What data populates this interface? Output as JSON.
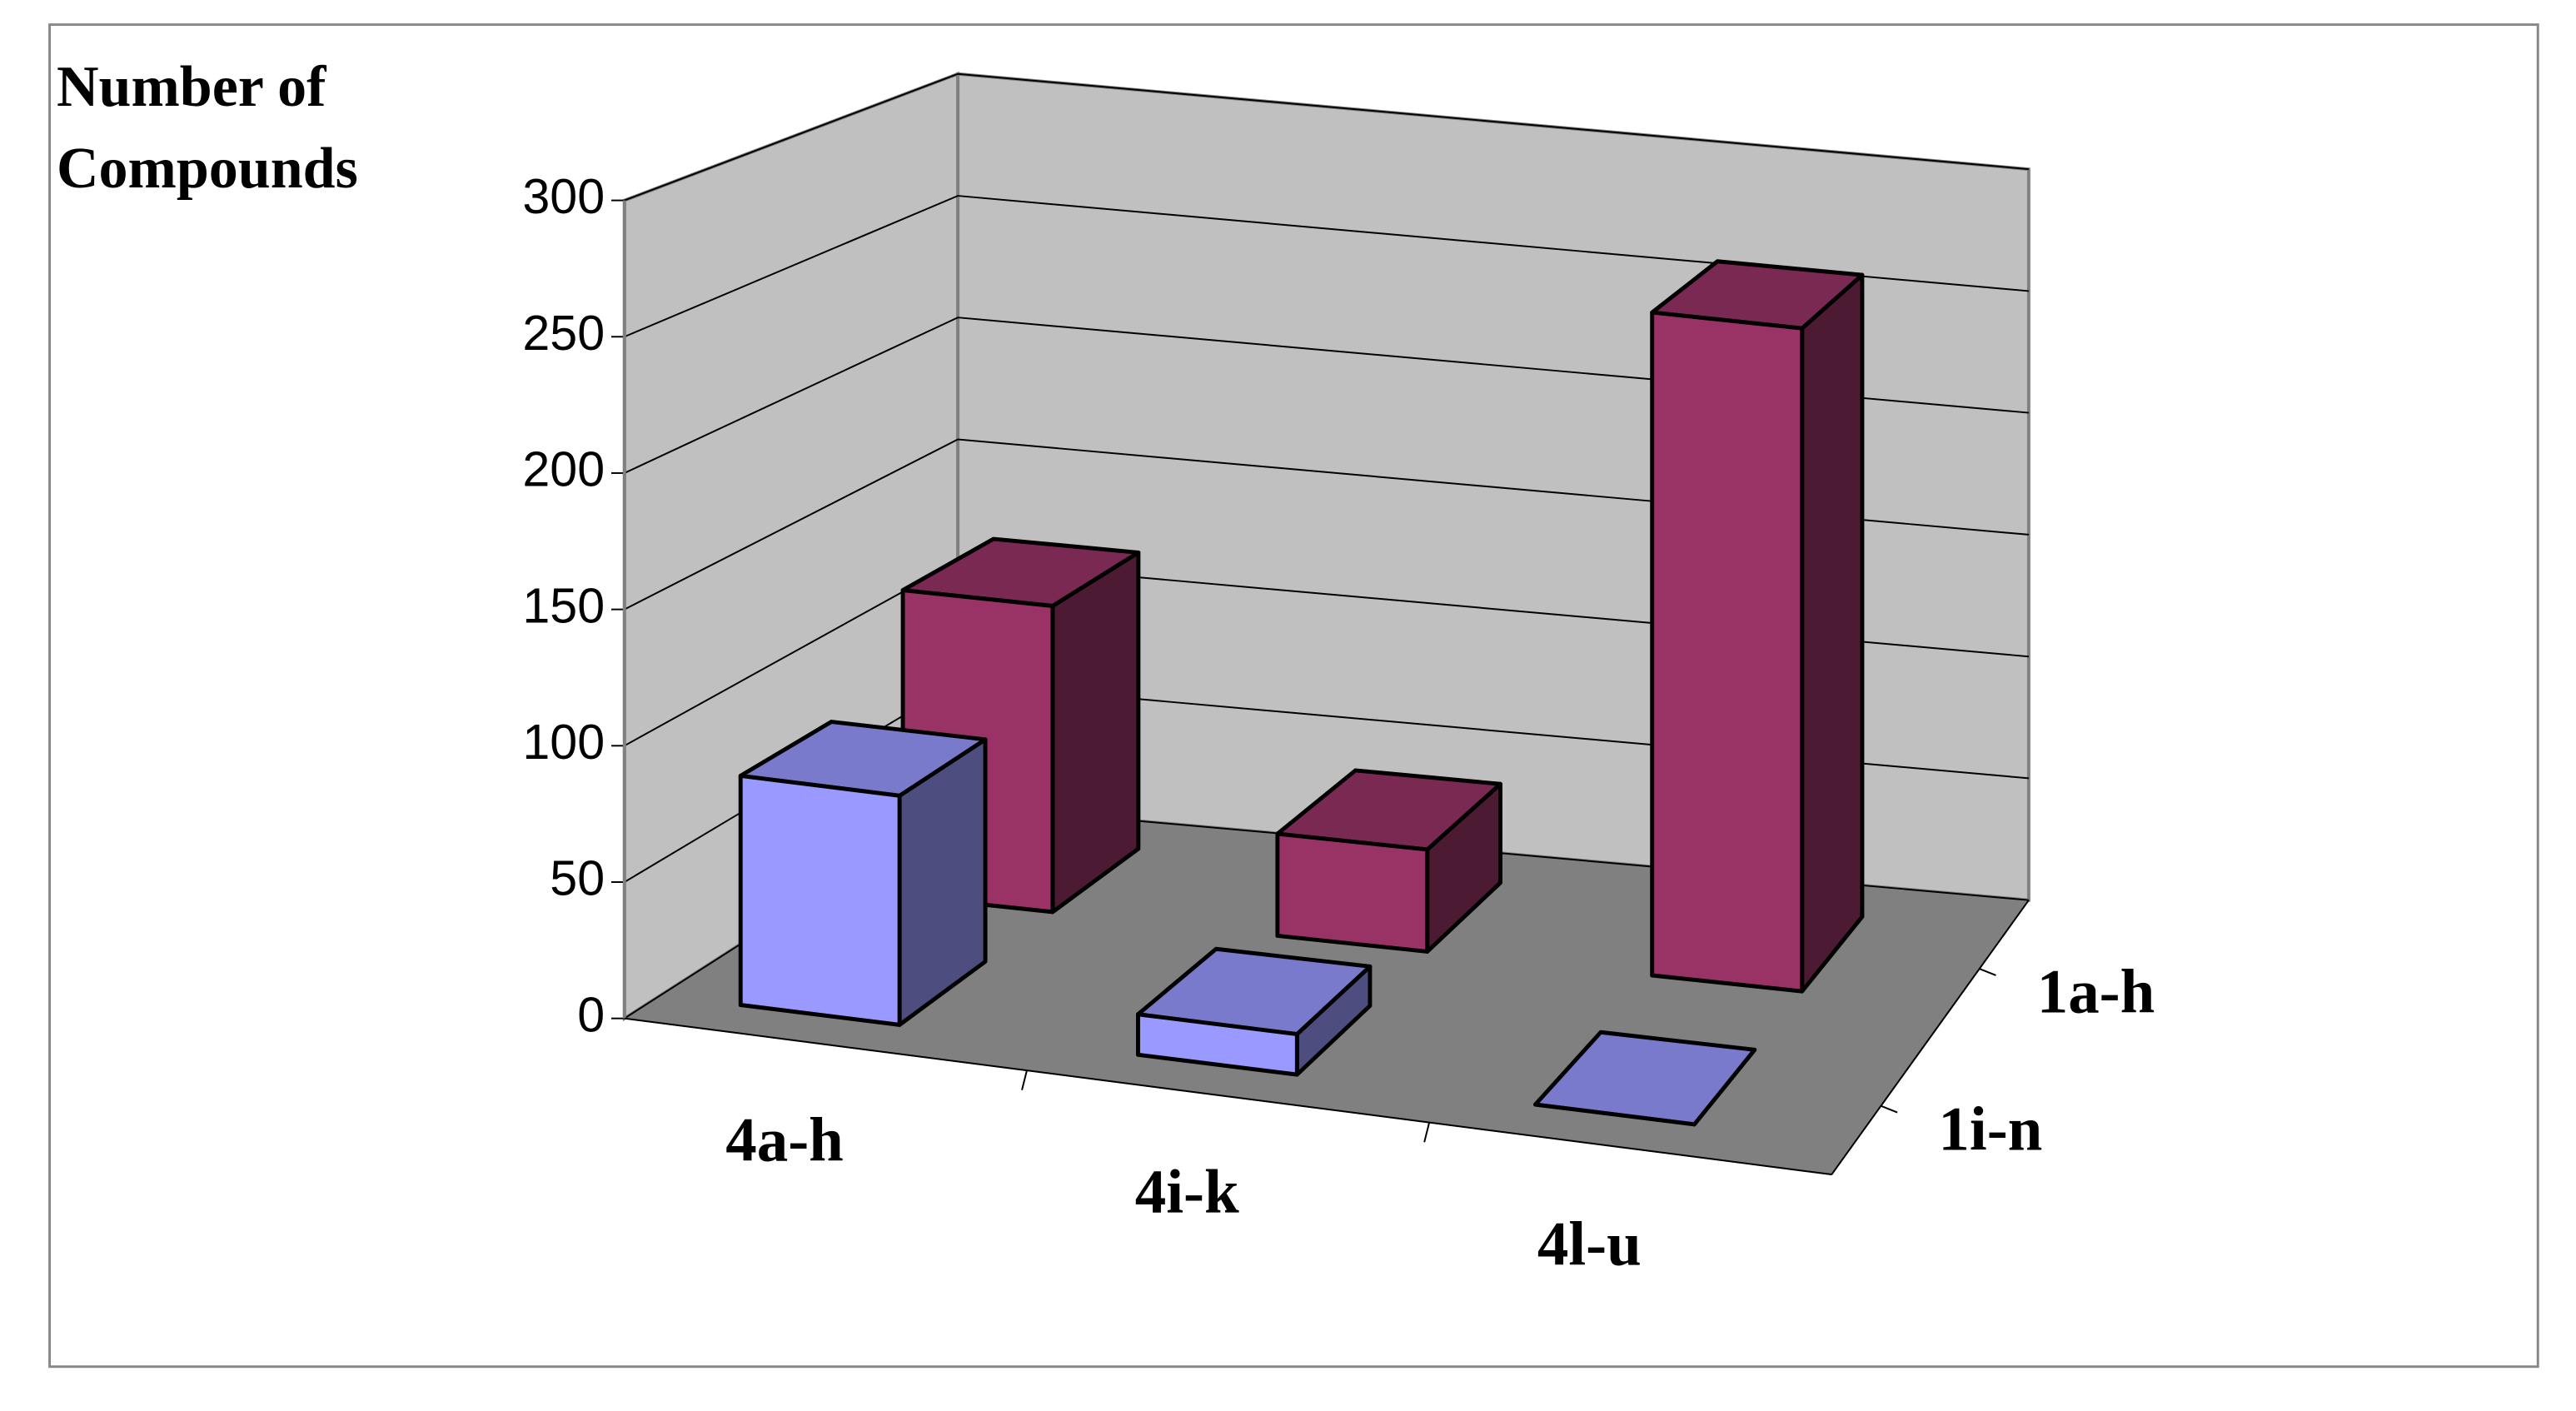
{
  "chart_data": {
    "type": "bar3d",
    "y_label": "Number of Compounds",
    "categories": [
      "4a-h",
      "4i-k",
      "4l-u"
    ],
    "series": [
      {
        "name": "1i-n",
        "color": "#9999ff",
        "values": [
          85,
          15,
          0
        ]
      },
      {
        "name": "1a-h",
        "color": "#993366",
        "values": [
          120,
          40,
          260
        ]
      }
    ],
    "ylim": [
      0,
      300
    ],
    "yticks": [
      0,
      50,
      100,
      150,
      200,
      250,
      300
    ],
    "grid": true
  }
}
